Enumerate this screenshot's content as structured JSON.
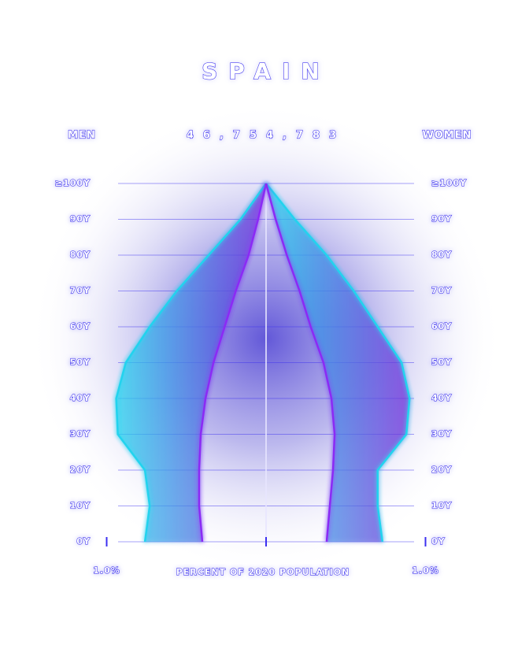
{
  "chart_data": {
    "type": "population-pyramid",
    "title": "SPAIN",
    "subtitle": "46,754,783",
    "left_label": "MEN",
    "right_label": "WOMEN",
    "xlabel": "PERCENT OF 2020 POPULATION",
    "ages": [
      0,
      10,
      20,
      30,
      40,
      50,
      60,
      70,
      80,
      90,
      100
    ],
    "series": [
      {
        "side": "men",
        "color": "#22d3ee",
        "values": [
          0.76,
          0.73,
          0.76,
          0.93,
          0.94,
          0.88,
          0.73,
          0.56,
          0.36,
          0.16,
          0
        ]
      },
      {
        "side": "men",
        "color": "#8b2cf5",
        "values": [
          0.4,
          0.42,
          0.42,
          0.41,
          0.38,
          0.33,
          0.26,
          0.19,
          0.11,
          0.05,
          0
        ]
      },
      {
        "side": "women",
        "color": "#22d3ee",
        "values": [
          0.73,
          0.7,
          0.7,
          0.88,
          0.9,
          0.85,
          0.7,
          0.55,
          0.38,
          0.18,
          0
        ]
      },
      {
        "side": "women",
        "color": "#8b2cf5",
        "values": [
          0.38,
          0.4,
          0.42,
          0.43,
          0.41,
          0.36,
          0.28,
          0.21,
          0.13,
          0.06,
          0
        ]
      }
    ],
    "xlim": [
      0,
      1.0
    ],
    "xticks": [
      {
        "value": 1.0,
        "label": "1.0%"
      }
    ],
    "ylim": [
      0,
      100
    ],
    "yticks": [
      {
        "value": 0,
        "label": "0Y"
      },
      {
        "value": 10,
        "label": "10Y"
      },
      {
        "value": 20,
        "label": "20Y"
      },
      {
        "value": 30,
        "label": "30Y"
      },
      {
        "value": 40,
        "label": "40Y"
      },
      {
        "value": 50,
        "label": "50Y"
      },
      {
        "value": 60,
        "label": "60Y"
      },
      {
        "value": 70,
        "label": "70Y"
      },
      {
        "value": 80,
        "label": "80Y"
      },
      {
        "value": 90,
        "label": "90Y"
      },
      {
        "value": 100,
        "label": "≥100Y"
      }
    ],
    "grid": true
  }
}
